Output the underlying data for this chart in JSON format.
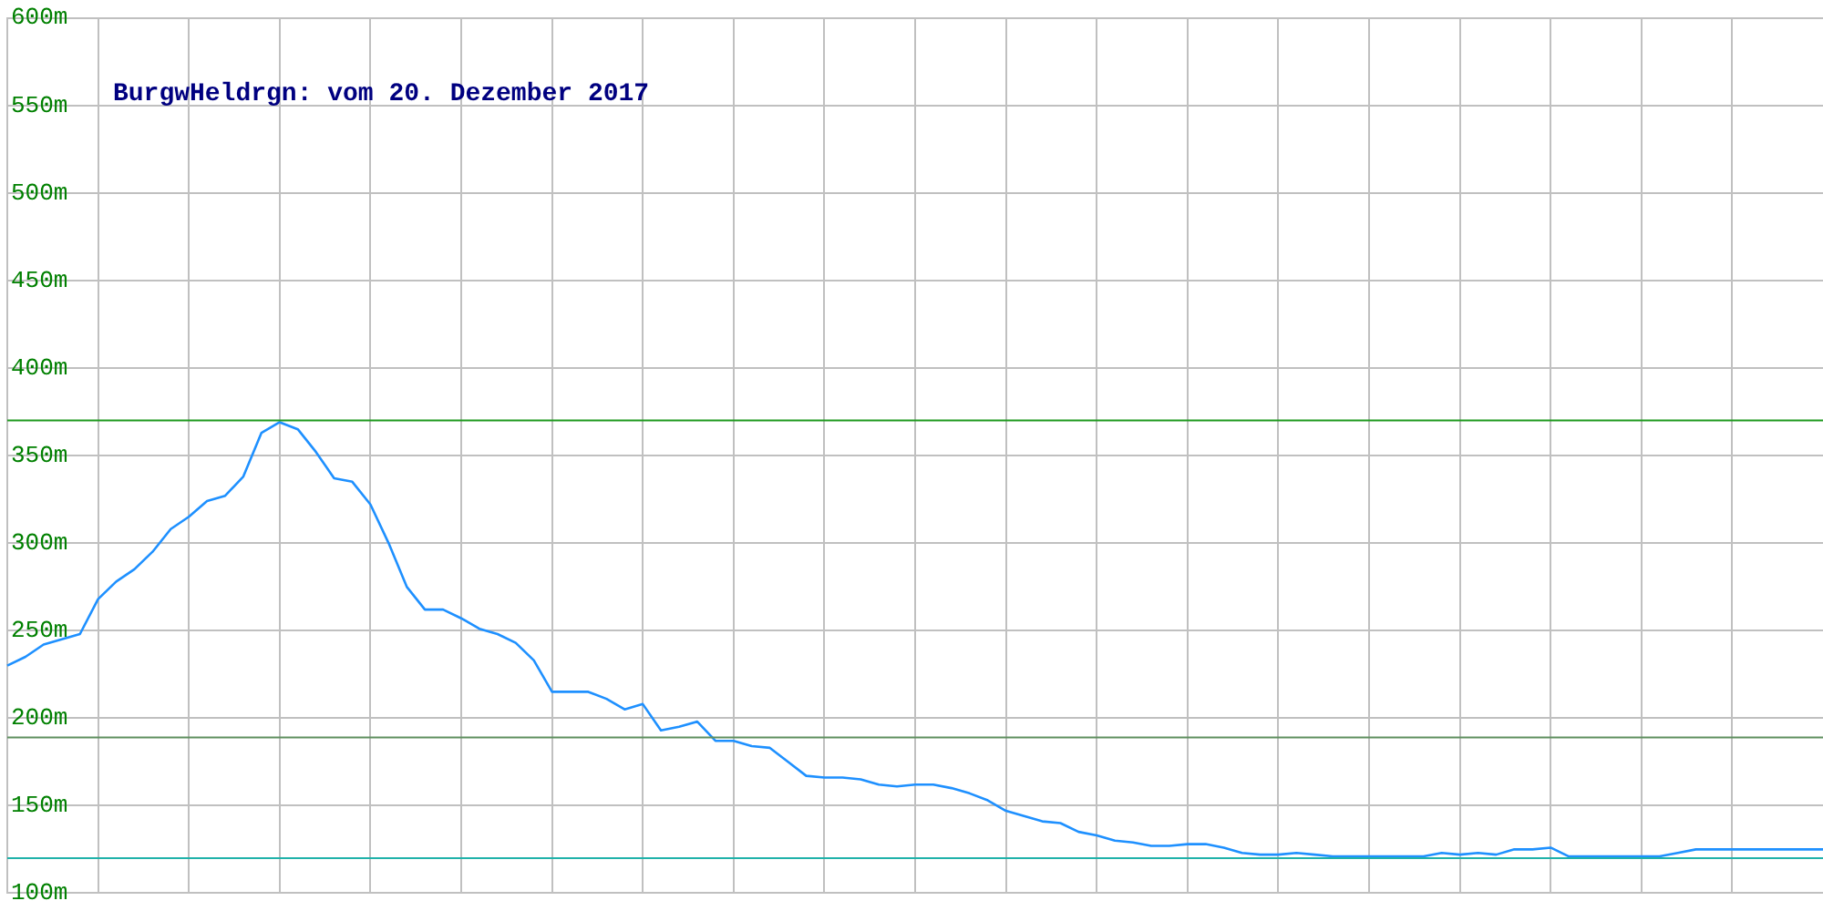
{
  "chart_data": {
    "type": "line",
    "title": "BurgwHeldrgn: vom 20. Dezember 2017",
    "categories": [
      null,
      null,
      null,
      null,
      null,
      null,
      null,
      null,
      null,
      null,
      null,
      null,
      null,
      null,
      null,
      null,
      null,
      null,
      null,
      null,
      null,
      null,
      null,
      null,
      null,
      null,
      null,
      null,
      null,
      null,
      null,
      null,
      null,
      null,
      null,
      null,
      null,
      null,
      null,
      null,
      null,
      null,
      null,
      null,
      null,
      null,
      null,
      null,
      null,
      null,
      null,
      null,
      null,
      null,
      null,
      null,
      null,
      null,
      null,
      null,
      null,
      null,
      null,
      null,
      null,
      null,
      null,
      null,
      null,
      null,
      null,
      null,
      null,
      null,
      null,
      null,
      null,
      null,
      null,
      null,
      null,
      null,
      null,
      null,
      null,
      null,
      null,
      null,
      null,
      null,
      null,
      null,
      null,
      null,
      null,
      null,
      null,
      null,
      null,
      null,
      null
    ],
    "series": [
      {
        "color": "#1e90ff",
        "values": [
          230,
          235,
          242,
          245,
          248,
          268,
          278,
          285,
          295,
          308,
          315,
          324,
          327,
          338,
          363,
          369,
          365,
          352,
          337,
          335,
          322,
          300,
          275,
          262,
          262,
          257,
          251,
          248,
          243,
          233,
          215,
          215,
          215,
          211,
          205,
          208,
          193,
          195,
          198,
          187,
          187,
          184,
          183,
          175,
          167,
          166,
          166,
          165,
          162,
          161,
          162,
          162,
          160,
          157,
          153,
          147,
          144,
          141,
          140,
          135,
          133,
          130,
          129,
          127,
          127,
          128,
          128,
          126,
          123,
          122,
          122,
          123,
          122,
          121,
          121,
          121,
          121,
          121,
          121,
          123,
          122,
          123,
          122,
          125,
          125,
          126,
          121,
          121,
          121,
          121,
          121,
          121,
          123,
          125,
          125,
          125,
          125,
          125,
          125,
          125,
          125
        ]
      }
    ],
    "ylim": [
      100,
      600
    ],
    "yticks": [
      {
        "value": 100,
        "label": "100m"
      },
      {
        "value": 150,
        "label": "150m"
      },
      {
        "value": 200,
        "label": "200m"
      },
      {
        "value": 250,
        "label": "250m"
      },
      {
        "value": 300,
        "label": "300m"
      },
      {
        "value": 350,
        "label": "350m"
      },
      {
        "value": 400,
        "label": "400m"
      },
      {
        "value": 450,
        "label": "450m"
      },
      {
        "value": 500,
        "label": "500m"
      },
      {
        "value": 550,
        "label": "550m"
      },
      {
        "value": 600,
        "label": "600m"
      }
    ],
    "ref_lines": [
      {
        "axis": "y",
        "value": 370,
        "color": "#1f9a1f"
      },
      {
        "axis": "y",
        "value": 189,
        "color": "#5f8f5f"
      },
      {
        "axis": "y",
        "value": 120,
        "color": "#20b2aa"
      }
    ],
    "grid": true,
    "legend": false,
    "marker": "none",
    "line_style": "solid",
    "tick_labels": "y"
  }
}
